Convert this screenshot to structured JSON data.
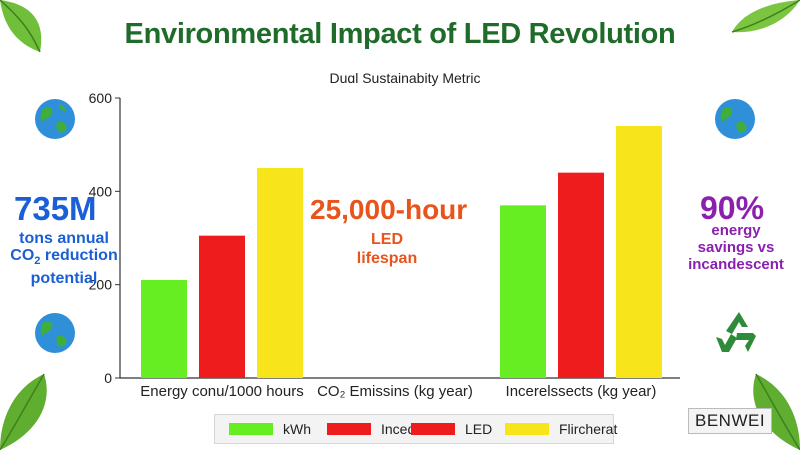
{
  "title": "Environmental Impact of LED Revolution",
  "subtitle": "Duɑl Sustainabity Metric",
  "watermark": "BENWEI",
  "colors": {
    "title": "#1f6b2a",
    "green": "#66ee22",
    "red": "#ee1c1c",
    "yellow": "#f7e41a",
    "blue_stat": "#1a5fd6",
    "orange_stat": "#e8541b",
    "purple_stat": "#8a1fb0"
  },
  "icons": [
    "globe-icon",
    "recycle-icon",
    "leaf-icon"
  ],
  "stats": {
    "left_number": "735M",
    "left_line1": "tons annual",
    "left_line2": "CO",
    "left_sub": "2",
    "left_line2b": " reduction",
    "left_line3": "potential",
    "center_number": "25,000-hour",
    "center_line1": "LED",
    "center_line2": "lifespan",
    "right_number": "90%",
    "right_line1": "energy",
    "right_line2": "savings vs",
    "right_line3": "incandescent"
  },
  "legend": [
    {
      "label": "kWh",
      "color": "#66ee22"
    },
    {
      "label": "Inceɑl",
      "color": "#ee1c1c"
    },
    {
      "label": "LED",
      "color": "#ee1c1c"
    },
    {
      "label": "Flircherat",
      "color": "#f7e41a"
    }
  ],
  "chart_data": {
    "type": "bar",
    "categories": [
      "Energy conu/1000 hours",
      "CO₂ Emissins (kg year)",
      "Incerelssects (kg year)"
    ],
    "series": [
      {
        "values": [
          210,
          null,
          370
        ]
      },
      {
        "values": [
          305,
          null,
          440
        ]
      },
      {
        "values": [
          450,
          null,
          540
        ]
      }
    ],
    "ylim": [
      0,
      600
    ],
    "yticks": [
      0,
      200,
      400,
      600
    ],
    "grid": false,
    "legend_position": "bottom"
  }
}
